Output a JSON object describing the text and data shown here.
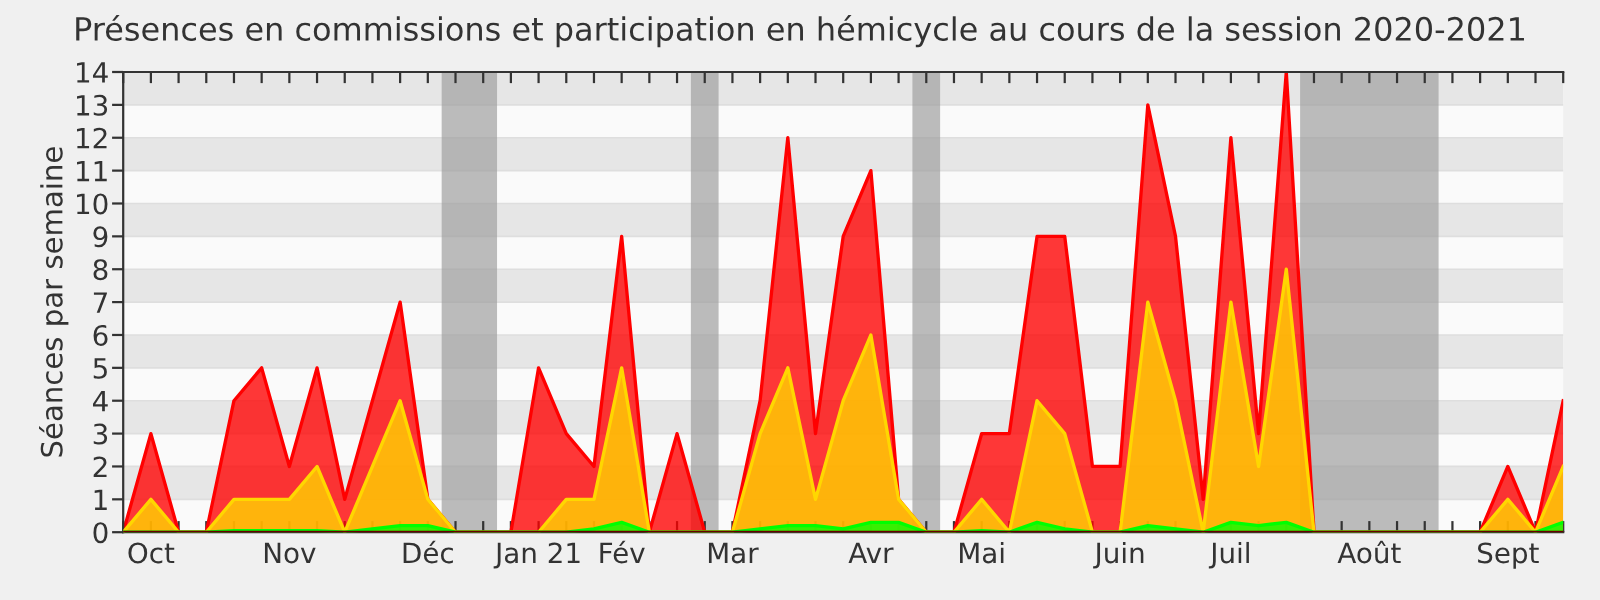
{
  "chart_data": {
    "type": "area",
    "title": "Présences en commissions et participation en hémicycle au cours de la session 2020-2021",
    "ylabel": "Séances par semaine",
    "x": [
      "2020-09-28",
      "2020-10-05",
      "2020-10-12",
      "2020-10-19",
      "2020-10-26",
      "2020-11-02",
      "2020-11-09",
      "2020-11-16",
      "2020-11-23",
      "2020-11-30",
      "2020-12-07",
      "2020-12-14",
      "2020-12-21",
      "2020-12-28",
      "2021-01-04",
      "2021-01-11",
      "2021-01-18",
      "2021-01-25",
      "2021-02-01",
      "2021-02-08",
      "2021-02-15",
      "2021-02-22",
      "2021-03-01",
      "2021-03-08",
      "2021-03-15",
      "2021-03-22",
      "2021-03-29",
      "2021-04-05",
      "2021-04-12",
      "2021-04-19",
      "2021-04-26",
      "2021-05-03",
      "2021-05-10",
      "2021-05-17",
      "2021-05-24",
      "2021-05-31",
      "2021-06-07",
      "2021-06-14",
      "2021-06-21",
      "2021-06-28",
      "2021-07-05",
      "2021-07-12",
      "2021-07-19",
      "2021-07-26",
      "2021-08-02",
      "2021-08-09",
      "2021-08-16",
      "2021-08-23",
      "2021-08-30",
      "2021-09-06",
      "2021-09-13",
      "2021-09-20",
      "2021-09-27"
    ],
    "series": [
      {
        "color": "#ff0000",
        "values": [
          0,
          3,
          0,
          0,
          4,
          5,
          2,
          5,
          1,
          4,
          7,
          1,
          0,
          0,
          0,
          5,
          3,
          2,
          9,
          0,
          3,
          0,
          0,
          4,
          12,
          3,
          9,
          11,
          1,
          0,
          0,
          3,
          3,
          9,
          9,
          2,
          2,
          13,
          9,
          1,
          12,
          3,
          14,
          0,
          0,
          0,
          0,
          0,
          0,
          0,
          2,
          0,
          4
        ]
      },
      {
        "color": "#ffd700",
        "values": [
          0,
          1,
          0,
          0,
          1,
          1,
          1,
          2,
          0,
          2,
          4,
          1,
          0,
          0,
          0,
          0,
          1,
          1,
          5,
          0,
          0,
          0,
          0,
          3,
          5,
          1,
          4,
          6,
          1,
          0,
          0,
          1,
          0,
          4,
          3,
          0,
          0,
          7,
          4,
          0,
          7,
          2,
          8,
          0,
          0,
          0,
          0,
          0,
          0,
          0,
          1,
          0,
          2
        ]
      },
      {
        "color": "#00ff00",
        "values": [
          0,
          0,
          0,
          0,
          0.05,
          0.05,
          0.05,
          0.05,
          0,
          0.1,
          0.2,
          0.2,
          0,
          0,
          0,
          0,
          0,
          0.1,
          0.3,
          0,
          0,
          0,
          0,
          0.1,
          0.2,
          0.2,
          0.1,
          0.3,
          0.3,
          0,
          0,
          0.05,
          0,
          0.3,
          0.1,
          0,
          0,
          0.2,
          0.1,
          0,
          0.3,
          0.2,
          0.3,
          0,
          0,
          0,
          0,
          0,
          0,
          0,
          0,
          0,
          0.3
        ]
      }
    ],
    "xlim": [
      "2020-09-28",
      "2021-09-27"
    ],
    "xticks": [
      {
        "value": "2020-09-28",
        "label": null
      },
      {
        "value": "2020-10-05",
        "label": "Oct"
      },
      {
        "value": "2020-10-12",
        "label": null
      },
      {
        "value": "2020-10-19",
        "label": null
      },
      {
        "value": "2020-10-26",
        "label": null
      },
      {
        "value": "2020-11-02",
        "label": null
      },
      {
        "value": "2020-11-09",
        "label": "Nov"
      },
      {
        "value": "2020-11-16",
        "label": null
      },
      {
        "value": "2020-11-23",
        "label": null
      },
      {
        "value": "2020-11-30",
        "label": null
      },
      {
        "value": "2020-12-07",
        "label": null
      },
      {
        "value": "2020-12-14",
        "label": "Déc"
      },
      {
        "value": "2020-12-21",
        "label": null
      },
      {
        "value": "2020-12-28",
        "label": null
      },
      {
        "value": "2021-01-04",
        "label": null
      },
      {
        "value": "2021-01-11",
        "label": "Jan 21"
      },
      {
        "value": "2021-01-18",
        "label": null
      },
      {
        "value": "2021-01-25",
        "label": null
      },
      {
        "value": "2021-02-01",
        "label": "Fév"
      },
      {
        "value": "2021-02-08",
        "label": null
      },
      {
        "value": "2021-02-15",
        "label": null
      },
      {
        "value": "2021-02-22",
        "label": null
      },
      {
        "value": "2021-03-01",
        "label": "Mar"
      },
      {
        "value": "2021-03-08",
        "label": null
      },
      {
        "value": "2021-03-15",
        "label": null
      },
      {
        "value": "2021-03-22",
        "label": null
      },
      {
        "value": "2021-03-29",
        "label": null
      },
      {
        "value": "2021-04-05",
        "label": "Avr"
      },
      {
        "value": "2021-04-12",
        "label": null
      },
      {
        "value": "2021-04-19",
        "label": null
      },
      {
        "value": "2021-04-26",
        "label": null
      },
      {
        "value": "2021-05-03",
        "label": "Mai"
      },
      {
        "value": "2021-05-10",
        "label": null
      },
      {
        "value": "2021-05-17",
        "label": null
      },
      {
        "value": "2021-05-24",
        "label": null
      },
      {
        "value": "2021-05-31",
        "label": null
      },
      {
        "value": "2021-06-07",
        "label": "Juin"
      },
      {
        "value": "2021-06-14",
        "label": null
      },
      {
        "value": "2021-06-21",
        "label": null
      },
      {
        "value": "2021-06-28",
        "label": null
      },
      {
        "value": "2021-07-05",
        "label": "Juil"
      },
      {
        "value": "2021-07-12",
        "label": null
      },
      {
        "value": "2021-07-19",
        "label": null
      },
      {
        "value": "2021-07-26",
        "label": null
      },
      {
        "value": "2021-08-02",
        "label": null
      },
      {
        "value": "2021-08-09",
        "label": "Août"
      },
      {
        "value": "2021-08-16",
        "label": null
      },
      {
        "value": "2021-08-23",
        "label": null
      },
      {
        "value": "2021-08-30",
        "label": null
      },
      {
        "value": "2021-09-06",
        "label": null
      },
      {
        "value": "2021-09-13",
        "label": "Sept"
      },
      {
        "value": "2021-09-20",
        "label": null
      },
      {
        "value": "2021-09-27",
        "label": null
      }
    ],
    "ylim": [
      0,
      14
    ],
    "yticks": [
      0,
      1,
      2,
      3,
      4,
      5,
      6,
      7,
      8,
      9,
      10,
      11,
      12,
      13,
      14
    ],
    "bands": [
      {
        "axis": "x",
        "from": "2020-12-17T12:00",
        "to": "2020-12-31T12:00",
        "color": "#a0a0a0"
      },
      {
        "axis": "x",
        "from": "2021-02-18T12:00",
        "to": "2021-02-25T12:00",
        "color": "#a0a0a0"
      },
      {
        "axis": "x",
        "from": "2021-04-15T12:00",
        "to": "2021-04-22T12:00",
        "color": "#a0a0a0"
      },
      {
        "axis": "x",
        "from": "2021-07-22T12:00",
        "to": "2021-08-26T12:00",
        "color": "#a0a0a0"
      }
    ],
    "grid": "y"
  }
}
